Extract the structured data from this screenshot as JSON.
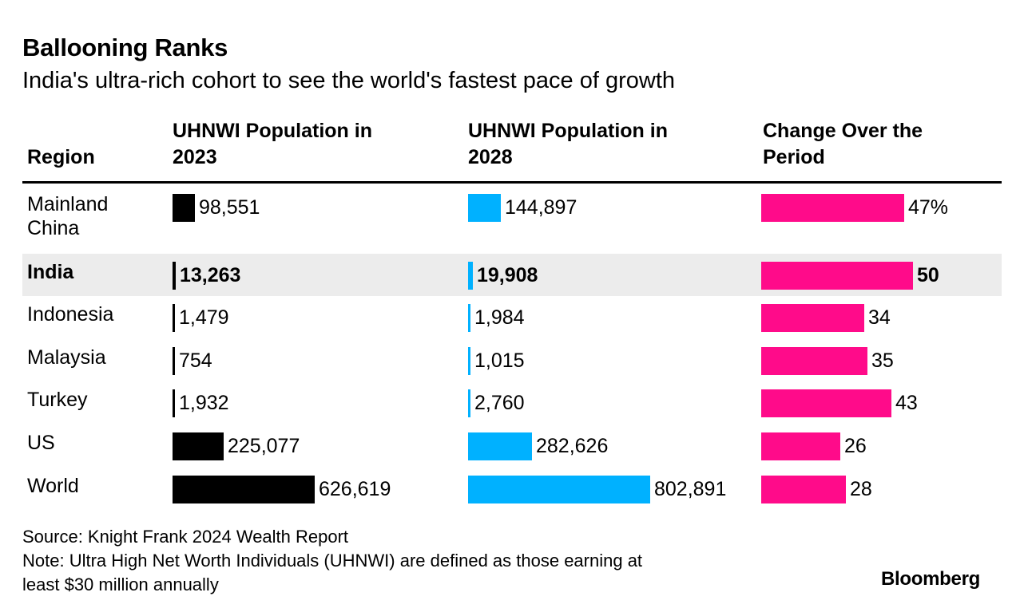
{
  "header": {
    "title": "Ballooning Ranks",
    "subtitle": "India's ultra-rich cohort to see the world's fastest pace of growth"
  },
  "table": {
    "columns": {
      "region": "Region",
      "pop2023": [
        "UHNWI Population in",
        "2023"
      ],
      "pop2028": [
        "UHNWI Population in",
        "2028"
      ],
      "change": [
        "Change Over the",
        "Period"
      ]
    }
  },
  "chart_data": {
    "type": "table",
    "title": "Ballooning Ranks",
    "subtitle": "India's ultra-rich cohort to see the world's fastest pace of growth",
    "highlight_region": "India",
    "colors": {
      "pop2023": "#000000",
      "pop2028": "#00b1ff",
      "change": "#ff0b8a",
      "highlight_row": "#ececec"
    },
    "scale": {
      "pop_max": 802891,
      "change_max": 50
    },
    "rows": [
      {
        "region": [
          "Mainland",
          "China"
        ],
        "pop2023": 98551,
        "pop2023_label": "98,551",
        "pop2028": 144897,
        "pop2028_label": "144,897",
        "change": 47,
        "change_label": "47%"
      },
      {
        "region": [
          "India"
        ],
        "pop2023": 13263,
        "pop2023_label": "13,263",
        "pop2028": 19908,
        "pop2028_label": "19,908",
        "change": 50,
        "change_label": "50"
      },
      {
        "region": [
          "Indonesia"
        ],
        "pop2023": 1479,
        "pop2023_label": "1,479",
        "pop2028": 1984,
        "pop2028_label": "1,984",
        "change": 34,
        "change_label": "34"
      },
      {
        "region": [
          "Malaysia"
        ],
        "pop2023": 754,
        "pop2023_label": "754",
        "pop2028": 1015,
        "pop2028_label": "1,015",
        "change": 35,
        "change_label": "35"
      },
      {
        "region": [
          "Turkey"
        ],
        "pop2023": 1932,
        "pop2023_label": "1,932",
        "pop2028": 2760,
        "pop2028_label": "2,760",
        "change": 43,
        "change_label": "43"
      },
      {
        "region": [
          "US"
        ],
        "pop2023": 225077,
        "pop2023_label": "225,077",
        "pop2028": 282626,
        "pop2028_label": "282,626",
        "change": 26,
        "change_label": "26"
      },
      {
        "region": [
          "World"
        ],
        "pop2023": 626619,
        "pop2023_label": "626,619",
        "pop2028": 802891,
        "pop2028_label": "802,891",
        "change": 28,
        "change_label": "28"
      }
    ]
  },
  "footer": {
    "source": "Source: Knight Frank 2024 Wealth Report",
    "note_line1": "Note: Ultra High Net Worth Individuals (UHNWI) are defined as those earning at",
    "note_line2": "least $30 million annually",
    "brand": "Bloomberg"
  }
}
